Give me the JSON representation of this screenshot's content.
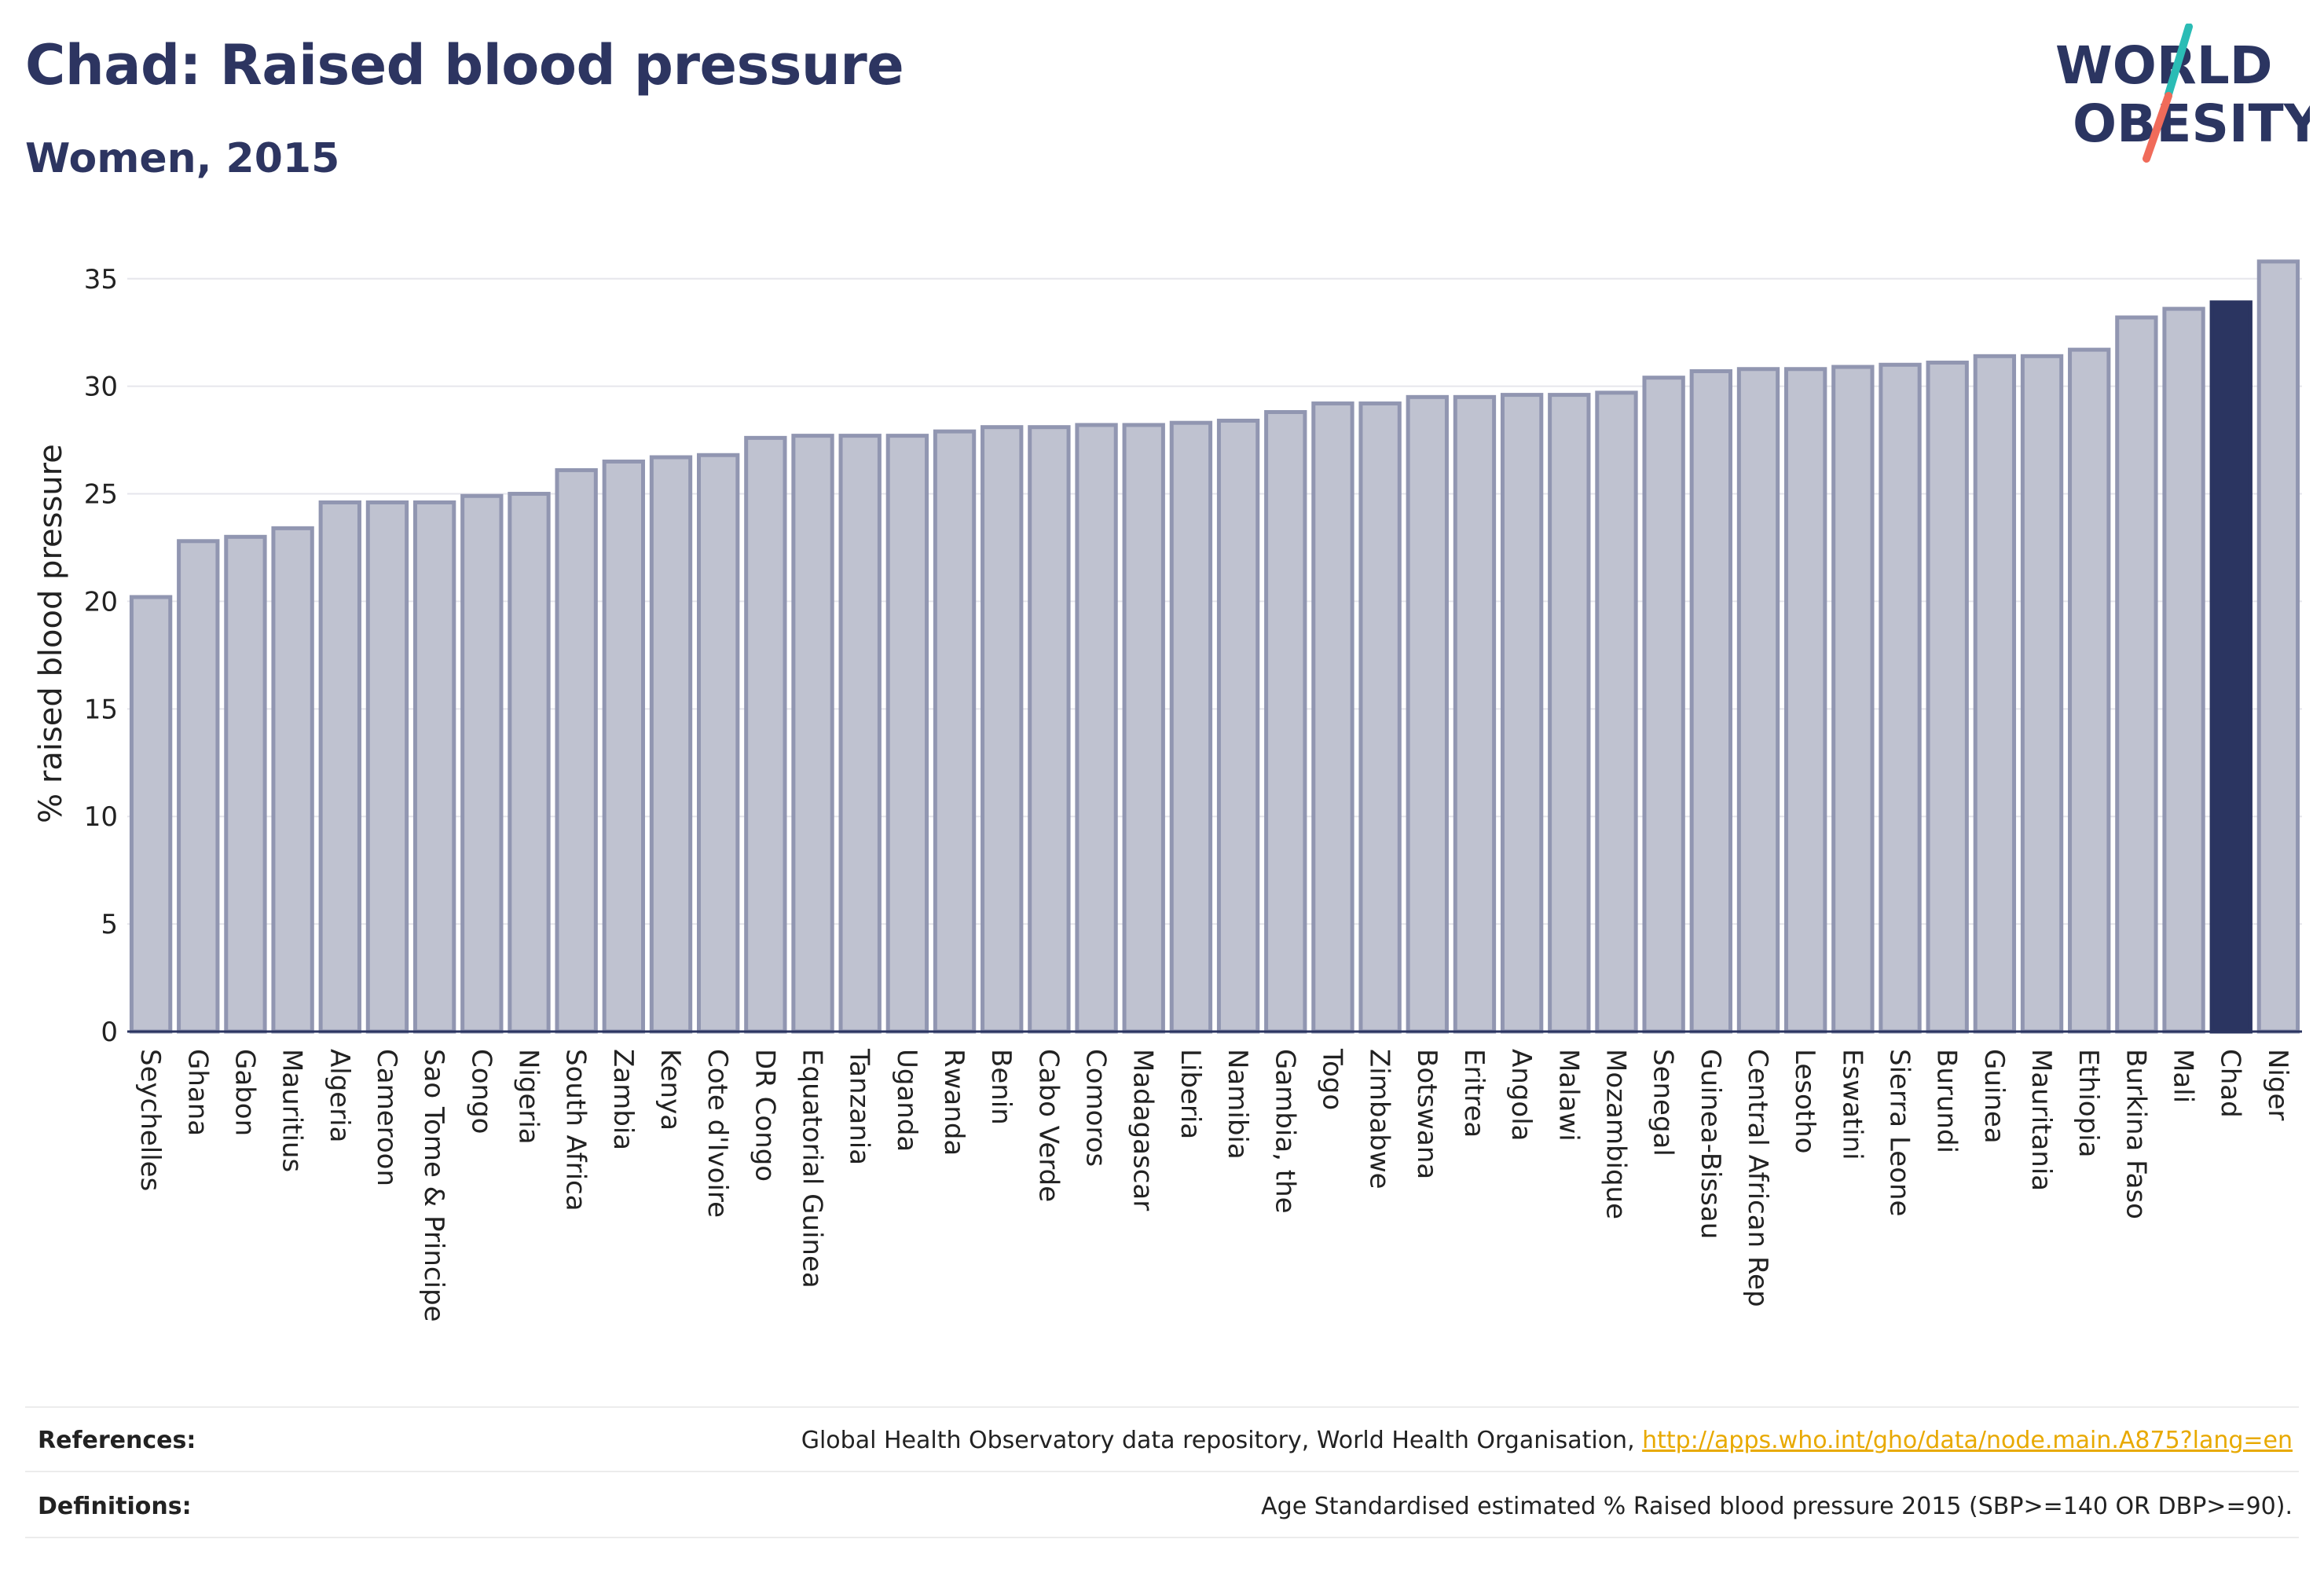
{
  "header": {
    "title": "Chad: Raised blood pressure",
    "subtitle": "Women, 2015",
    "logo_line1": "WORLD",
    "logo_line2": "OBESITY"
  },
  "colors": {
    "bar_fill": "#bfc2d0",
    "bar_stroke": "#9196b1",
    "highlight": "#2b3561",
    "text": "#2b3561",
    "link": "#e8a900",
    "logo_teal": "#2bbcb5",
    "logo_coral": "#f06b5a"
  },
  "chart_data": {
    "type": "bar",
    "ylabel": "% raised blood pressure",
    "xlabel": "",
    "ylim": [
      0,
      37
    ],
    "yticks": [
      0,
      5,
      10,
      15,
      20,
      25,
      30,
      35
    ],
    "grid": true,
    "highlight": "Chad",
    "categories": [
      "Seychelles",
      "Ghana",
      "Gabon",
      "Mauritius",
      "Algeria",
      "Cameroon",
      "Sao Tome & Principe",
      "Congo",
      "Nigeria",
      "South Africa",
      "Zambia",
      "Kenya",
      "Cote d'Ivoire",
      "DR Congo",
      "Equatorial Guinea",
      "Tanzania",
      "Uganda",
      "Rwanda",
      "Benin",
      "Cabo Verde",
      "Comoros",
      "Madagascar",
      "Liberia",
      "Namibia",
      "Gambia, the",
      "Togo",
      "Zimbabwe",
      "Botswana",
      "Eritrea",
      "Angola",
      "Malawi",
      "Mozambique",
      "Senegal",
      "Guinea-Bissau",
      "Central African Rep",
      "Lesotho",
      "Eswatini",
      "Sierra Leone",
      "Burundi",
      "Guinea",
      "Mauritania",
      "Ethiopia",
      "Burkina Faso",
      "Mali",
      "Chad",
      "Niger"
    ],
    "values": [
      20.2,
      22.8,
      23.0,
      23.4,
      24.6,
      24.6,
      24.6,
      24.9,
      25.0,
      26.1,
      26.5,
      26.7,
      26.8,
      27.6,
      27.7,
      27.7,
      27.7,
      27.9,
      28.1,
      28.1,
      28.2,
      28.2,
      28.3,
      28.4,
      28.8,
      29.2,
      29.2,
      29.5,
      29.5,
      29.6,
      29.6,
      29.7,
      30.4,
      30.7,
      30.8,
      30.8,
      30.9,
      31.0,
      31.1,
      31.4,
      31.4,
      31.7,
      33.2,
      33.6,
      33.9,
      35.8
    ]
  },
  "footer": {
    "references_label": "References:",
    "references_text": "Global Health Observatory data repository, World Health Organisation, ",
    "references_link": "http://apps.who.int/gho/data/node.main.A875?lang=en",
    "definitions_label": "Definitions:",
    "definitions_text": "Age Standardised estimated % Raised blood pressure 2015 (SBP>=140 OR DBP>=90)."
  }
}
